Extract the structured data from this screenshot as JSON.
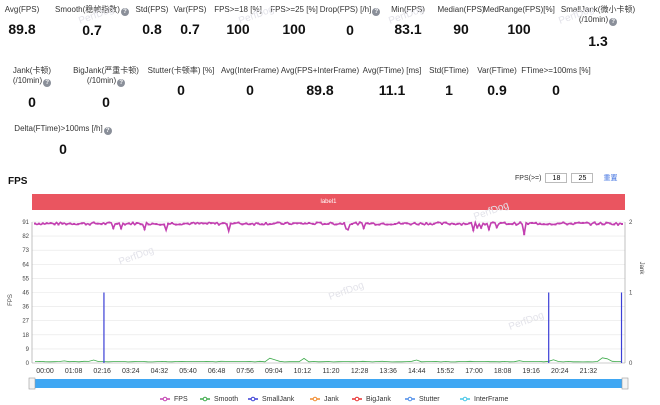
{
  "metrics": [
    {
      "label": "Avg(FPS)",
      "value": "89.8",
      "help": false
    },
    {
      "label": "Smooth(稳帧指数)",
      "value": "0.7",
      "help": true
    },
    {
      "label": "Std(FPS)",
      "value": "0.8",
      "help": false
    },
    {
      "label": "Var(FPS)",
      "value": "0.7",
      "help": false
    },
    {
      "label": "FPS>=18 [%]",
      "value": "100",
      "help": false
    },
    {
      "label": "FPS>=25 [%]",
      "value": "100",
      "help": false
    },
    {
      "label": "Drop(FPS) [/h]",
      "value": "0",
      "help": true
    },
    {
      "label": "Min(FPS)",
      "value": "83.1",
      "help": false
    },
    {
      "label": "Median(FPS)",
      "value": "90",
      "help": false
    },
    {
      "label": "MedRange(FPS)[%]",
      "value": "100",
      "help": false
    },
    {
      "label": "SmallJank(微小卡顿)",
      "label2": "(/10min)",
      "value": "1.3",
      "help": true
    },
    {
      "label": "Jank(卡顿)",
      "label2": "(/10min)",
      "value": "0",
      "help": true
    },
    {
      "label": "BigJank(严重卡顿)",
      "label2": "(/10min)",
      "value": "0",
      "help": true
    },
    {
      "label": "Stutter(卡顿率) [%]",
      "value": "0",
      "help": false
    },
    {
      "label": "Avg(InterFrame)",
      "value": "0",
      "help": false
    },
    {
      "label": "Avg(FPS+InterFrame)",
      "value": "89.8",
      "help": false
    },
    {
      "label": "Avg(FTime) [ms]",
      "value": "11.1",
      "help": false
    },
    {
      "label": "Std(FTime)",
      "value": "1",
      "help": false
    },
    {
      "label": "Var(FTime)",
      "value": "0.9",
      "help": false
    },
    {
      "label": "FTime>=100ms [%]",
      "value": "0",
      "help": false
    },
    {
      "label": "Delta(FTime)>100ms [/h]",
      "value": "0",
      "help": true
    }
  ],
  "section": {
    "title": "FPS"
  },
  "fps_filter": {
    "label": "FPS(>=)",
    "low": "18",
    "high": "25",
    "reset": "重置"
  },
  "label_bar": "label1",
  "watermark": "PerfDog",
  "colors": {
    "fps": "#c23fb0",
    "smooth": "#3daa4a",
    "smalljank": "#3b3fd6",
    "jank": "#f08a2c",
    "bigjank": "#e83030",
    "stutter": "#4a8be8",
    "interframe": "#44c5e6"
  },
  "chart_data": {
    "type": "line",
    "ylabel": "FPS",
    "y2label": "Jank",
    "ylim": [
      0,
      91
    ],
    "yticks": [
      "0",
      "9",
      "18",
      "27",
      "36",
      "46",
      "55",
      "64",
      "73",
      "82",
      "91"
    ],
    "y2ticks": [
      "0",
      "1",
      "2"
    ],
    "y2lim": [
      0,
      2
    ],
    "xticks": [
      "00:00",
      "01:08",
      "02:16",
      "03:24",
      "04:32",
      "05:40",
      "06:48",
      "07:56",
      "09:04",
      "10:12",
      "11:20",
      "12:28",
      "13:36",
      "14:44",
      "15:52",
      "17:00",
      "18:08",
      "19:16",
      "20:24",
      "21:32"
    ],
    "duration_s": 1360,
    "series": [
      {
        "name": "FPS",
        "axis": "left",
        "typical": 90,
        "min": 83.1
      },
      {
        "name": "Smooth",
        "axis": "left",
        "typical": 0.7
      },
      {
        "name": "SmallJank",
        "axis": "right",
        "events_s": [
          165,
          1185,
          1352
        ],
        "value": 1
      },
      {
        "name": "Jank",
        "axis": "right",
        "events_s": []
      },
      {
        "name": "BigJank",
        "axis": "right",
        "events_s": []
      },
      {
        "name": "Stutter",
        "axis": "left",
        "events_s": []
      },
      {
        "name": "InterFrame",
        "axis": "left",
        "events_s": []
      }
    ],
    "legend": [
      "FPS",
      "Smooth",
      "SmallJank",
      "Jank",
      "BigJank",
      "Stutter",
      "InterFrame"
    ]
  }
}
